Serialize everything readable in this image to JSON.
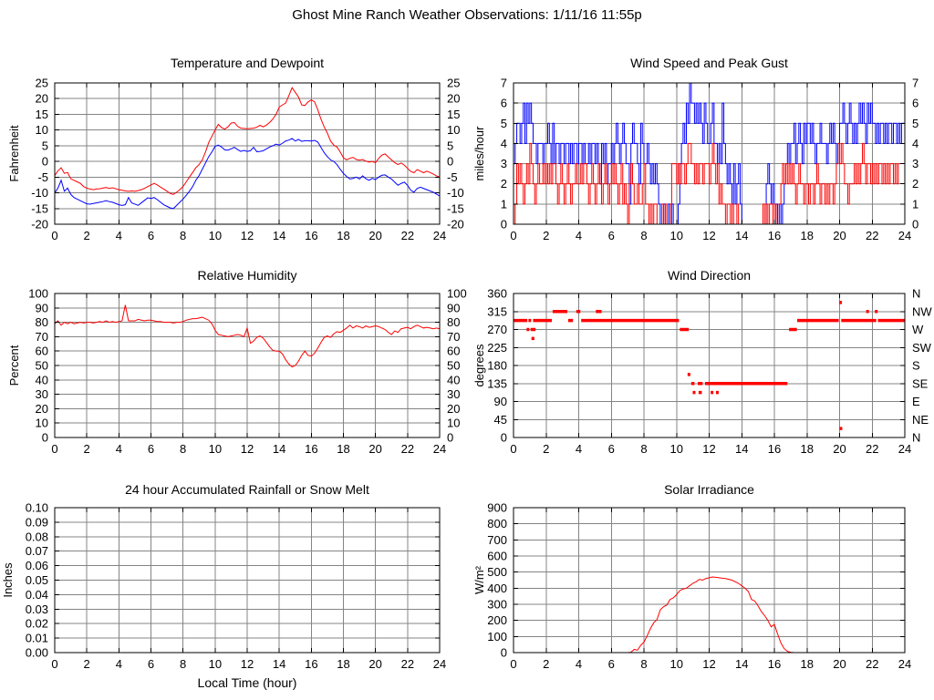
{
  "page_title": "Ghost Mine Ranch Weather Observations: 1/11/16 11:55p",
  "colors": {
    "series_red": "#ff0000",
    "series_blue": "#0000ff",
    "grid": "#848484",
    "axis": "#000000",
    "text": "#000000",
    "background": "#ffffff"
  },
  "chart_data": [
    {
      "type": "line",
      "title": "Temperature and Dewpoint",
      "ylabel": "Fahrenheit",
      "xlabel": "",
      "xlim": [
        0,
        24
      ],
      "xticks": [
        0,
        2,
        4,
        6,
        8,
        10,
        12,
        14,
        16,
        18,
        20,
        22,
        24
      ],
      "xtick_labels": [
        "0",
        "2",
        "4",
        "6",
        "8",
        "10",
        "12",
        "14",
        "16",
        "18",
        "20",
        "22",
        "24"
      ],
      "ylim": [
        -20,
        25
      ],
      "yticks": [
        -20,
        -15,
        -10,
        -5,
        0,
        5,
        10,
        15,
        20,
        25
      ],
      "ytick_labels": [
        "-20",
        "-15",
        "-10",
        "-5",
        "0",
        "5",
        "10",
        "15",
        "20",
        "25"
      ],
      "right_labels": [
        "-20",
        "-15",
        "-10",
        "-5",
        "0",
        "5",
        "10",
        "15",
        "20",
        "25"
      ],
      "grid": true,
      "legend": "none",
      "series": [
        {
          "name": "temperature",
          "color": "#ff0000",
          "type": "line",
          "x_start": 0,
          "x_step": 0.2,
          "values": [
            -4.5,
            -3,
            -2,
            -3.8,
            -3.5,
            -5.5,
            -6,
            -6.5,
            -7,
            -8,
            -8.5,
            -8.8,
            -9,
            -8.8,
            -8.7,
            -8.5,
            -8.3,
            -8.6,
            -8.4,
            -8.7,
            -9,
            -9.2,
            -9.4,
            -9.5,
            -9.4,
            -9.5,
            -9.3,
            -9,
            -8.6,
            -8,
            -7.5,
            -7,
            -7.5,
            -8.2,
            -8.8,
            -9.5,
            -10.2,
            -10.5,
            -9.8,
            -9,
            -8,
            -6.5,
            -5,
            -3.5,
            -2,
            -1,
            0.5,
            3,
            6,
            8,
            10,
            11.8,
            10.8,
            10.3,
            11,
            12.2,
            12.4,
            11.2,
            10.6,
            10.5,
            10.4,
            10.5,
            10.6,
            10.9,
            11.5,
            11,
            11.6,
            12.4,
            13.5,
            15,
            17.3,
            18,
            18.6,
            21,
            23.5,
            22,
            20.5,
            18,
            17.8,
            19,
            19.6,
            19,
            16.5,
            13.5,
            11,
            9,
            6.5,
            5.2,
            4.6,
            3,
            1.2,
            0.5,
            1,
            1.3,
            0.6,
            0.4,
            0.6,
            0.1,
            -0.2,
            0,
            -0.4,
            1,
            2,
            2.4,
            1.4,
            0.5,
            -0.4,
            -1,
            -0.5,
            -1.2,
            -2.2,
            -3.2,
            -3.6,
            -2.6,
            -3.1,
            -3.6,
            -3.1,
            -3.5,
            -4,
            -4.6,
            -5
          ]
        },
        {
          "name": "dewpoint",
          "color": "#0000ff",
          "type": "line",
          "x_start": 0,
          "x_step": 0.2,
          "values": [
            -10,
            -8.5,
            -6,
            -9.5,
            -8.5,
            -10.5,
            -11.5,
            -12,
            -12.5,
            -13,
            -13.5,
            -13.6,
            -13.4,
            -13.2,
            -13,
            -12.8,
            -12.5,
            -12.8,
            -13,
            -13.4,
            -13.8,
            -14,
            -13.8,
            -11.5,
            -13.2,
            -13.6,
            -14,
            -13.2,
            -12.4,
            -11.6,
            -11.8,
            -11.5,
            -12.2,
            -13,
            -13.8,
            -14.3,
            -14.8,
            -15,
            -14,
            -13,
            -12,
            -10.8,
            -9.5,
            -8,
            -6,
            -4.5,
            -2.5,
            -0.5,
            1.5,
            3,
            4.8,
            5.2,
            4.6,
            3.7,
            3.6,
            4,
            4.5,
            3.8,
            3.2,
            3.5,
            3.2,
            3.4,
            4.5,
            3.1,
            3.2,
            3.4,
            4,
            4.6,
            5,
            5.5,
            5.2,
            5.8,
            6.5,
            6.8,
            7.3,
            6.5,
            7,
            6.4,
            6.6,
            6.6,
            6.5,
            6.7,
            6.2,
            4.5,
            2.8,
            1.5,
            0.5,
            0,
            -1,
            -2.5,
            -3.8,
            -4.8,
            -5.6,
            -5.4,
            -5,
            -5.6,
            -4.6,
            -5.5,
            -6,
            -5.4,
            -5.8,
            -5,
            -4.4,
            -4.3,
            -5,
            -5.6,
            -6.6,
            -7.6,
            -7,
            -6.6,
            -7.6,
            -9.2,
            -9.8,
            -8.6,
            -8.2,
            -8.6,
            -9,
            -9.4,
            -9.8,
            -10.4,
            -11
          ]
        }
      ]
    },
    {
      "type": "line",
      "title": "Wind Speed and Peak Gust",
      "ylabel": "miles/hour",
      "xlabel": "",
      "xlim": [
        0,
        24
      ],
      "xticks": [
        0,
        2,
        4,
        6,
        8,
        10,
        12,
        14,
        16,
        18,
        20,
        22,
        24
      ],
      "xtick_labels": [
        "0",
        "2",
        "4",
        "6",
        "8",
        "10",
        "12",
        "14",
        "16",
        "18",
        "20",
        "22",
        "24"
      ],
      "ylim": [
        0,
        7
      ],
      "yticks": [
        0,
        1,
        2,
        3,
        4,
        5,
        6,
        7
      ],
      "ytick_labels": [
        "0",
        "1",
        "2",
        "3",
        "4",
        "5",
        "6",
        "7"
      ],
      "right_labels": [
        "0",
        "1",
        "2",
        "3",
        "4",
        "5",
        "6",
        "7"
      ],
      "grid": true,
      "legend": "none",
      "series": [
        {
          "name": "peak-gust",
          "color": "#0000ff",
          "type": "steps",
          "x_start": 0,
          "x_step": 0.1,
          "digits": "3455456465654434443445435344344344343443443433434434324342334345434543314544325433432323210010010100013454657665656546544564434364323213123100000000000000023212010101234344534543545545434454443454543455654565454565654656554545545455455454555"
        },
        {
          "name": "wind-speed",
          "color": "#ff0000",
          "type": "steps",
          "x_start": 0,
          "x_step": 0.1,
          "digits": "0132321232432123223232323321232123212232232332123212321232123232123121023211211231101011000101001333232332344332323323332343231211011010010000000000000001010110100123232323212322122122123212212122123434322122232323432332323233232323323233"
        }
      ]
    },
    {
      "type": "line",
      "title": "Relative Humidity",
      "ylabel": "Percent",
      "xlabel": "",
      "xlim": [
        0,
        24
      ],
      "xticks": [
        0,
        2,
        4,
        6,
        8,
        10,
        12,
        14,
        16,
        18,
        20,
        22,
        24
      ],
      "xtick_labels": [
        "0",
        "2",
        "4",
        "6",
        "8",
        "10",
        "12",
        "14",
        "16",
        "18",
        "20",
        "22",
        "24"
      ],
      "ylim": [
        0,
        100
      ],
      "yticks": [
        0,
        10,
        20,
        30,
        40,
        50,
        60,
        70,
        80,
        90,
        100
      ],
      "ytick_labels": [
        "0",
        "10",
        "20",
        "30",
        "40",
        "50",
        "60",
        "70",
        "80",
        "90",
        "100"
      ],
      "right_labels": [
        "0",
        "10",
        "20",
        "30",
        "40",
        "50",
        "60",
        "70",
        "80",
        "90",
        "100"
      ],
      "grid": true,
      "legend": "none",
      "series": [
        {
          "name": "relative-humidity",
          "color": "#ff0000",
          "type": "line",
          "x_start": 0,
          "x_step": 0.2,
          "values": [
            79,
            81,
            78,
            80,
            79,
            80,
            79,
            79.5,
            80,
            79.5,
            80,
            80,
            79.5,
            80,
            80.5,
            80,
            81,
            80,
            80.5,
            80,
            80.5,
            81,
            92,
            81,
            81,
            81,
            82,
            81.5,
            81,
            81.5,
            81.5,
            81,
            80.5,
            80.5,
            80,
            80,
            80,
            79.5,
            80,
            80,
            80.5,
            81.5,
            82,
            82.5,
            82.5,
            83,
            83.5,
            82.5,
            81.5,
            79,
            74.5,
            71.5,
            71,
            70.5,
            70,
            70.5,
            71,
            71.5,
            71,
            70,
            76,
            65.5,
            67,
            69.5,
            70.5,
            69,
            66,
            63,
            60.5,
            60,
            60,
            58,
            54,
            51,
            49,
            50,
            53,
            57,
            60,
            57,
            56.5,
            58.5,
            62,
            66,
            69.5,
            70.5,
            69.5,
            72,
            73.5,
            73,
            74.5,
            76,
            78,
            76,
            77.5,
            77,
            76,
            77.5,
            76.5,
            77,
            77.5,
            77,
            76,
            75,
            73,
            71.5,
            74,
            73,
            75.5,
            76,
            76.5,
            75.5,
            77,
            78,
            77,
            76,
            76.5,
            76,
            75.5,
            76,
            75.5
          ]
        }
      ]
    },
    {
      "type": "scatter",
      "title": "Wind Direction",
      "ylabel": "degrees",
      "xlabel": "",
      "xlim": [
        0,
        24
      ],
      "xticks": [
        0,
        2,
        4,
        6,
        8,
        10,
        12,
        14,
        16,
        18,
        20,
        22,
        24
      ],
      "xtick_labels": [
        "0",
        "2",
        "4",
        "6",
        "8",
        "10",
        "12",
        "14",
        "16",
        "18",
        "20",
        "22",
        "24"
      ],
      "ylim": [
        0,
        360
      ],
      "yticks": [
        0,
        45,
        90,
        135,
        180,
        225,
        270,
        315,
        360
      ],
      "ytick_labels": [
        "0",
        "45",
        "90",
        "135",
        "180",
        "225",
        "270",
        "315",
        "360"
      ],
      "right_labels": [
        "N",
        "NE",
        "E",
        "SE",
        "S",
        "SW",
        "W",
        "NW",
        "N"
      ],
      "grid": true,
      "legend": "none",
      "series": [
        {
          "name": "wind-direction",
          "color": "#ff0000",
          "type": "segments",
          "segments": [
            [
              292.5,
              0,
              0.85
            ],
            [
              292.5,
              0.95,
              1.05
            ],
            [
              292.5,
              1.2,
              2.35
            ],
            [
              270,
              0.82,
              0.95
            ],
            [
              270,
              1.05,
              1.35
            ],
            [
              247.5,
              1.1,
              1.28
            ],
            [
              315,
              2.4,
              3.3
            ],
            [
              292.5,
              3.35,
              3.65
            ],
            [
              315,
              3.85,
              4.1
            ],
            [
              292.5,
              4.15,
              10.15
            ],
            [
              315,
              5.05,
              5.4
            ],
            [
              270,
              10.2,
              10.75
            ],
            [
              157.5,
              10.7,
              10.82
            ],
            [
              135,
              10.9,
              11.1
            ],
            [
              112.5,
              11.0,
              11.15
            ],
            [
              135,
              11.3,
              11.6
            ],
            [
              112.5,
              11.35,
              11.55
            ],
            [
              135,
              11.75,
              16.8
            ],
            [
              112.5,
              12.1,
              12.25
            ],
            [
              112.5,
              12.42,
              12.58
            ],
            [
              270,
              16.9,
              17.38
            ],
            [
              292.5,
              17.4,
              19.95
            ],
            [
              337.5,
              20.0,
              20.12
            ],
            [
              22.5,
              20.02,
              20.14
            ],
            [
              292.5,
              20.1,
              22.25
            ],
            [
              292.5,
              22.35,
              24
            ],
            [
              315,
              21.65,
              21.78
            ],
            [
              315,
              22.18,
              22.32
            ]
          ]
        }
      ]
    },
    {
      "type": "line",
      "title": "24 hour Accumulated Rainfall or Snow Melt",
      "ylabel": "Inches",
      "xlabel": "Local Time (hour)",
      "xlim": [
        0,
        24
      ],
      "xticks": [
        0,
        2,
        4,
        6,
        8,
        10,
        12,
        14,
        16,
        18,
        20,
        22,
        24
      ],
      "xtick_labels": [
        "0",
        "2",
        "4",
        "6",
        "8",
        "10",
        "12",
        "14",
        "16",
        "18",
        "20",
        "22",
        "24"
      ],
      "ylim": [
        0,
        0.1
      ],
      "yticks": [
        0,
        0.01,
        0.02,
        0.03,
        0.04,
        0.05,
        0.06,
        0.07,
        0.08,
        0.09,
        0.1
      ],
      "ytick_labels": [
        "0.00",
        "0.01",
        "0.02",
        "0.03",
        "0.04",
        "0.05",
        "0.06",
        "0.07",
        "0.08",
        "0.09",
        "0.10"
      ],
      "right_labels": null,
      "grid": true,
      "legend": "none",
      "series": [
        {
          "name": "rainfall",
          "color": "#ff0000",
          "type": "line",
          "x_start": 0,
          "x_step": 24,
          "values": [
            0,
            0
          ]
        }
      ]
    },
    {
      "type": "line",
      "title": "Solar Irradiance",
      "ylabel": "W/m²",
      "xlabel": "",
      "xlim": [
        0,
        24
      ],
      "xticks": [
        0,
        2,
        4,
        6,
        8,
        10,
        12,
        14,
        16,
        18,
        20,
        22,
        24
      ],
      "xtick_labels": [
        "0",
        "2",
        "4",
        "6",
        "8",
        "10",
        "12",
        "14",
        "16",
        "18",
        "20",
        "22",
        "24"
      ],
      "ylim": [
        0,
        900
      ],
      "yticks": [
        0,
        100,
        200,
        300,
        400,
        500,
        600,
        700,
        800,
        900
      ],
      "ytick_labels": [
        "0",
        "100",
        "200",
        "300",
        "400",
        "500",
        "600",
        "700",
        "800",
        "900"
      ],
      "right_labels": null,
      "grid": true,
      "legend": "none",
      "series": [
        {
          "name": "solar-irradiance",
          "color": "#ff0000",
          "type": "line",
          "x_start": 0,
          "x_step": 0.2,
          "values": [
            0,
            0,
            0,
            0,
            0,
            0,
            0,
            0,
            0,
            0,
            0,
            0,
            0,
            0,
            0,
            0,
            0,
            0,
            0,
            0,
            0,
            0,
            0,
            0,
            0,
            0,
            0,
            0,
            0,
            0,
            0,
            0,
            0,
            0,
            0,
            0,
            2,
            20,
            15,
            45,
            65,
            105,
            150,
            185,
            205,
            265,
            285,
            295,
            330,
            340,
            360,
            385,
            395,
            400,
            415,
            430,
            440,
            455,
            450,
            460,
            465,
            470,
            468,
            465,
            462,
            460,
            455,
            450,
            440,
            430,
            415,
            400,
            380,
            330,
            320,
            290,
            255,
            230,
            200,
            160,
            175,
            115,
            60,
            25,
            8,
            2,
            0,
            0,
            0,
            0,
            0,
            0,
            0,
            0,
            0,
            0,
            0,
            0,
            0,
            0,
            0,
            0,
            0,
            0,
            0,
            0,
            0,
            0,
            0,
            0,
            0,
            0,
            0,
            0,
            0,
            0,
            0,
            0,
            0,
            0,
            0
          ]
        }
      ]
    }
  ]
}
